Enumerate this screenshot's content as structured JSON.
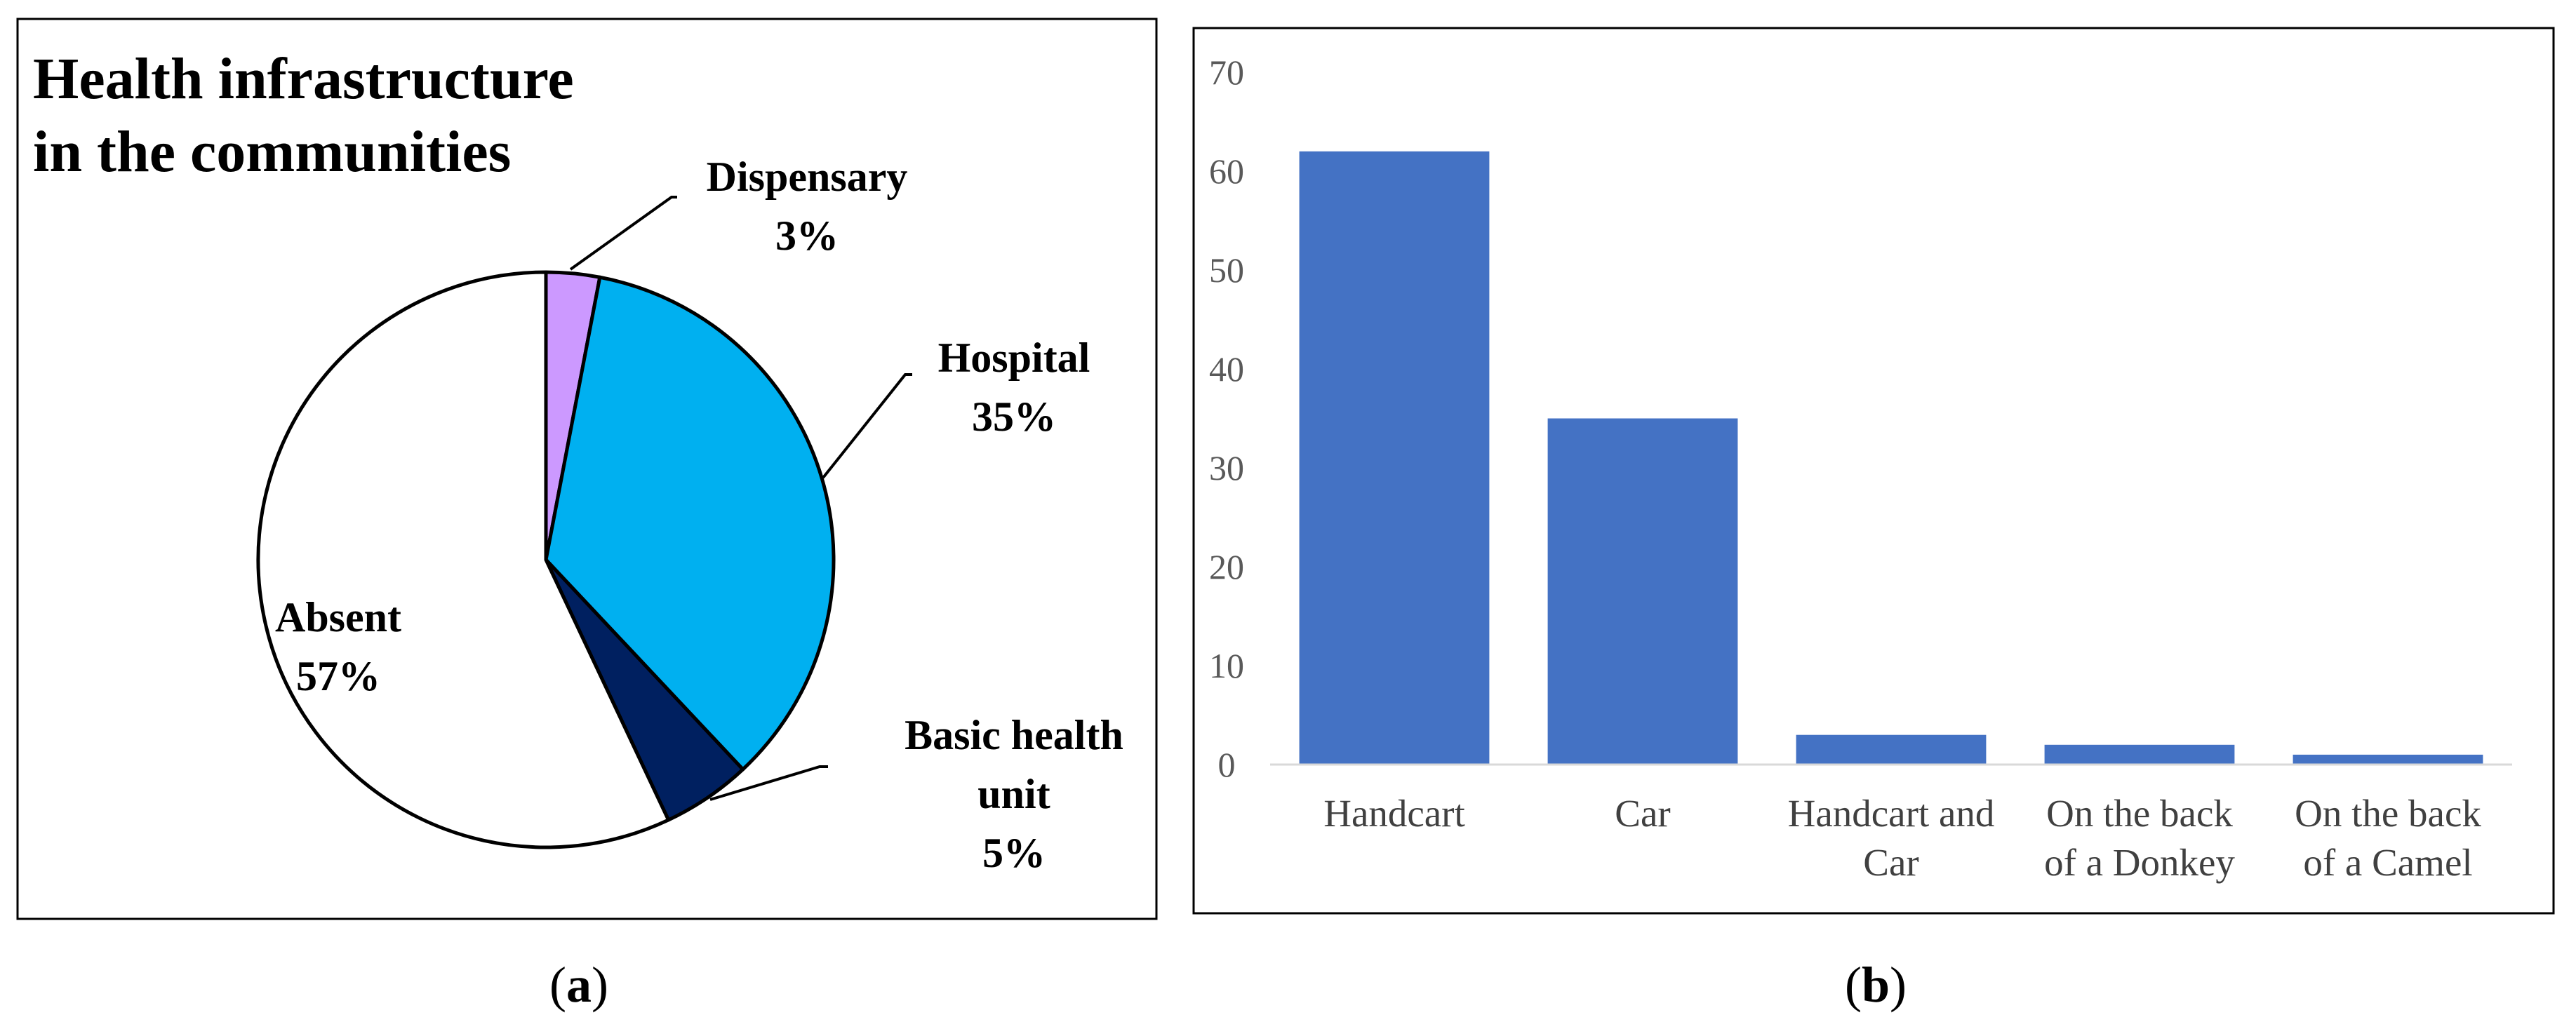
{
  "panels": [
    {
      "label_open": "(",
      "label_letter": "a",
      "label_close": ")"
    },
    {
      "label_open": "(",
      "label_letter": "b",
      "label_close": ")"
    }
  ],
  "chart_data": [
    {
      "type": "pie",
      "title": [
        "Health infrastructure",
        "in the communities"
      ],
      "slices": [
        {
          "name": "Dispensary",
          "value": 3,
          "label": [
            "Dispensary",
            "3%"
          ],
          "color": "#cc99ff"
        },
        {
          "name": "Hospital",
          "value": 35,
          "label": [
            "Hospital",
            "35%"
          ],
          "color": "#00b0f0"
        },
        {
          "name": "Basic health unit",
          "value": 5,
          "label": [
            "Basic health",
            "unit",
            "5%"
          ],
          "color": "#002060"
        },
        {
          "name": "Absent",
          "value": 57,
          "label": [
            "Absent",
            "57%"
          ],
          "color": "#ffffff"
        }
      ],
      "start_angle": "12 o'clock",
      "direction": "clockwise",
      "edge_color": "#000000"
    },
    {
      "type": "bar",
      "categories": [
        [
          "Handcart"
        ],
        [
          "Car"
        ],
        [
          "Handcart and",
          "Car"
        ],
        [
          "On the back",
          "of a Donkey"
        ],
        [
          "On the back",
          "of a Camel"
        ]
      ],
      "values": [
        62,
        35,
        3,
        2,
        1
      ],
      "ylim": [
        0,
        70
      ],
      "yticks": [
        0,
        10,
        20,
        30,
        40,
        50,
        60,
        70
      ],
      "bar_color": "#4472c4",
      "grid": false,
      "title": "",
      "xlabel": "",
      "ylabel": ""
    }
  ]
}
